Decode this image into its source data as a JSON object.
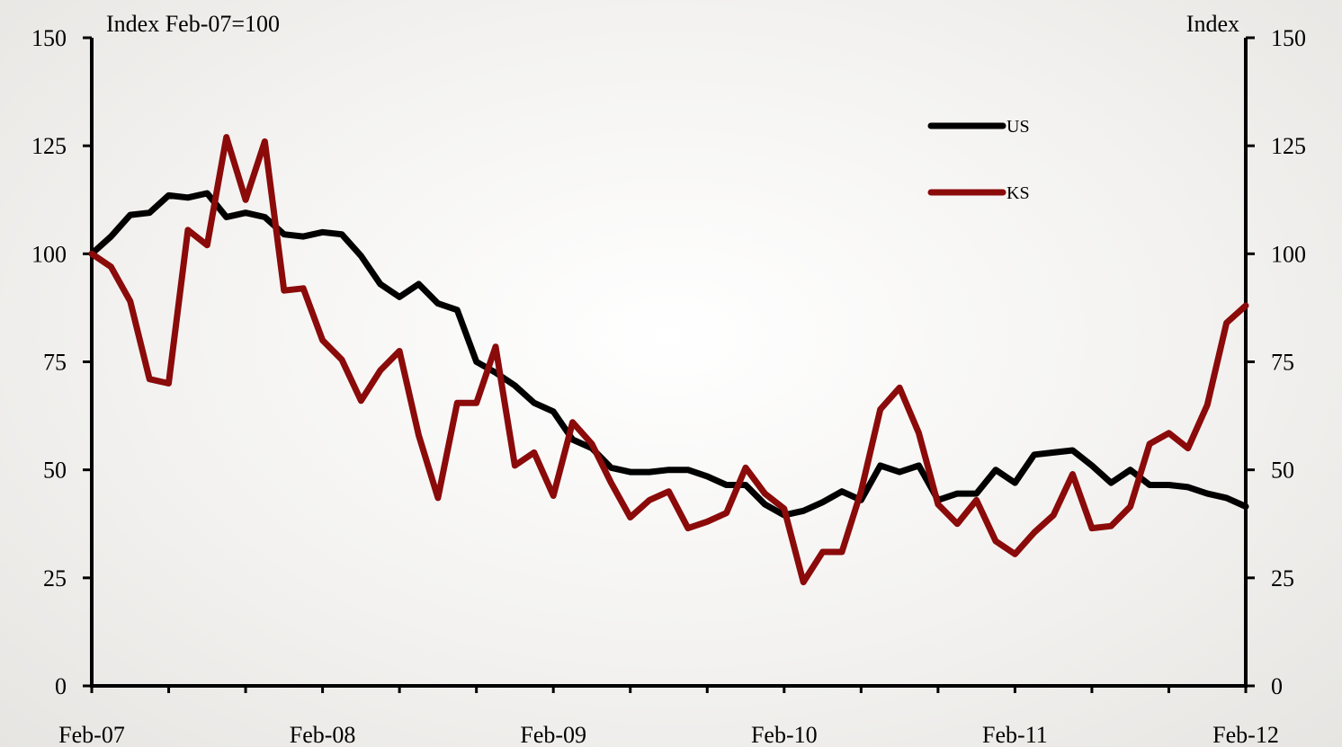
{
  "chart_data": {
    "type": "line",
    "left_axis_title": "Index Feb-07=100",
    "right_axis_title": "Index",
    "ylim": [
      0,
      150
    ],
    "y_ticks": [
      0,
      25,
      50,
      75,
      100,
      125,
      150
    ],
    "x_tick_labels": [
      "Feb-07",
      "Feb-08",
      "Feb-09",
      "Feb-10",
      "Feb-11",
      "Feb-12"
    ],
    "x_range": [
      "Feb-07",
      "Feb-12"
    ],
    "months": 61,
    "grid": false,
    "legend_position": "top-right",
    "series": [
      {
        "name": "US",
        "color": "#000000",
        "values": [
          100,
          104,
          109,
          109.5,
          113.5,
          113,
          114,
          108.5,
          109.5,
          108.5,
          104.5,
          104,
          105,
          104.5,
          99.5,
          93,
          90,
          93,
          88.5,
          87,
          75,
          72.5,
          69.5,
          65.5,
          63.5,
          57,
          55,
          50.5,
          49.5,
          49.5,
          50,
          50,
          48.5,
          46.5,
          46.5,
          42,
          39.5,
          40.5,
          42.5,
          45,
          43,
          51,
          49.5,
          51,
          43,
          44.5,
          44.5,
          50,
          47,
          53.5,
          54,
          54.5,
          51,
          47,
          50,
          46.5,
          46.5,
          46,
          44.5,
          43.5,
          41.5
        ]
      },
      {
        "name": "KS",
        "color": "#8b0a0a",
        "values": [
          100,
          97,
          89,
          71,
          70,
          105.5,
          102,
          127,
          112.5,
          126,
          91.5,
          92,
          80,
          75.5,
          66,
          73,
          77.5,
          58,
          43.5,
          65.5,
          65.5,
          78.5,
          51,
          54,
          44,
          61,
          56,
          47,
          39,
          43,
          45,
          36.5,
          38,
          40,
          50.5,
          44.5,
          41,
          24,
          31,
          31,
          45,
          64,
          69,
          58.5,
          42,
          37.5,
          43,
          33.5,
          30.5,
          35.5,
          39.5,
          49,
          36.5,
          37,
          41.5,
          56,
          58.5,
          55,
          65,
          84,
          88
        ]
      }
    ]
  }
}
